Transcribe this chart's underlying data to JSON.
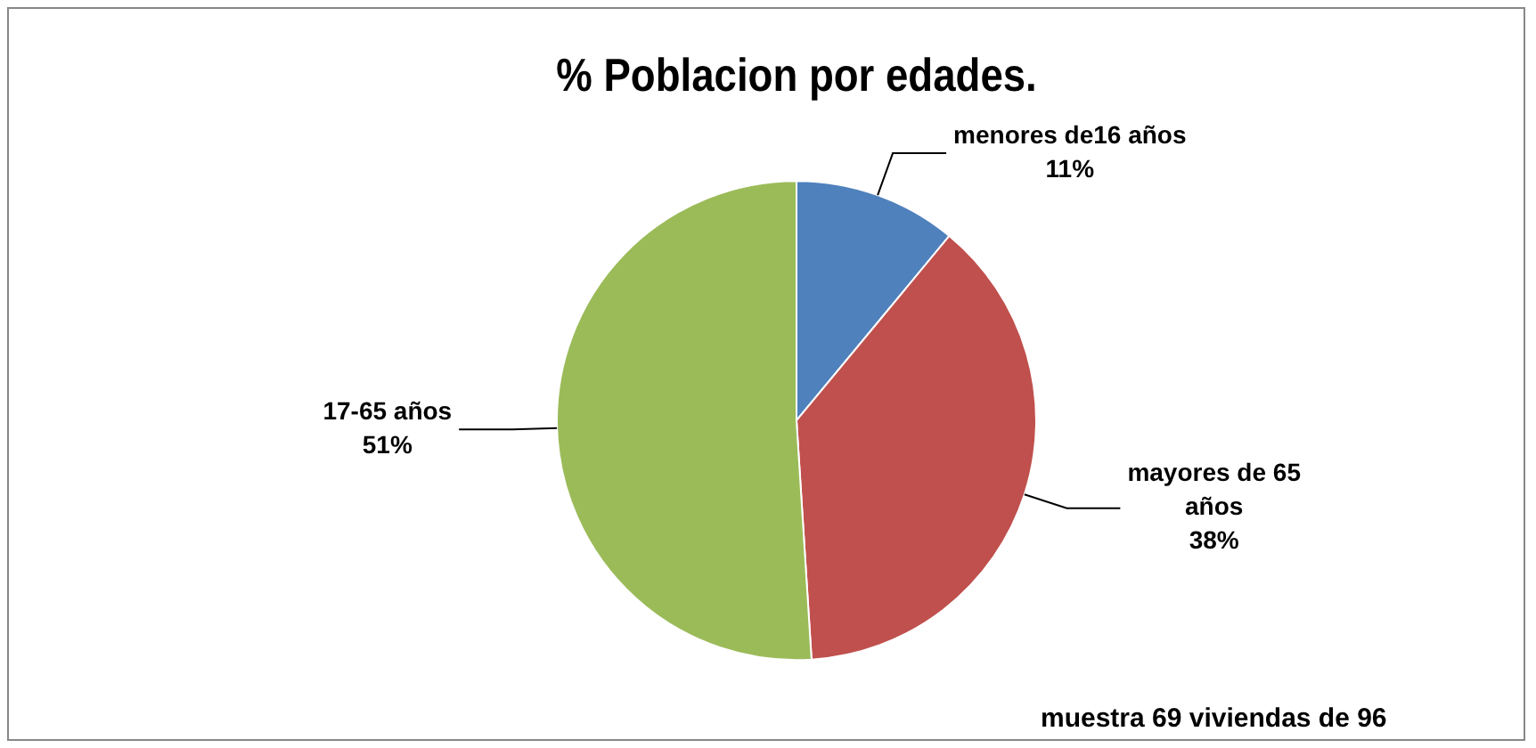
{
  "chart_data": {
    "type": "pie",
    "title": "% Poblacion por edades.",
    "categories": [
      "menores de16 años",
      "mayores de 65 años",
      "17-65 años"
    ],
    "values": [
      11,
      38,
      51
    ],
    "colors": [
      "#4f81bd",
      "#c0504d",
      "#9bbb59"
    ],
    "value_labels": [
      "11%",
      "38%",
      "51%"
    ],
    "legend": false,
    "annotations": [
      "muestra 69 viviendas de 96"
    ]
  }
}
